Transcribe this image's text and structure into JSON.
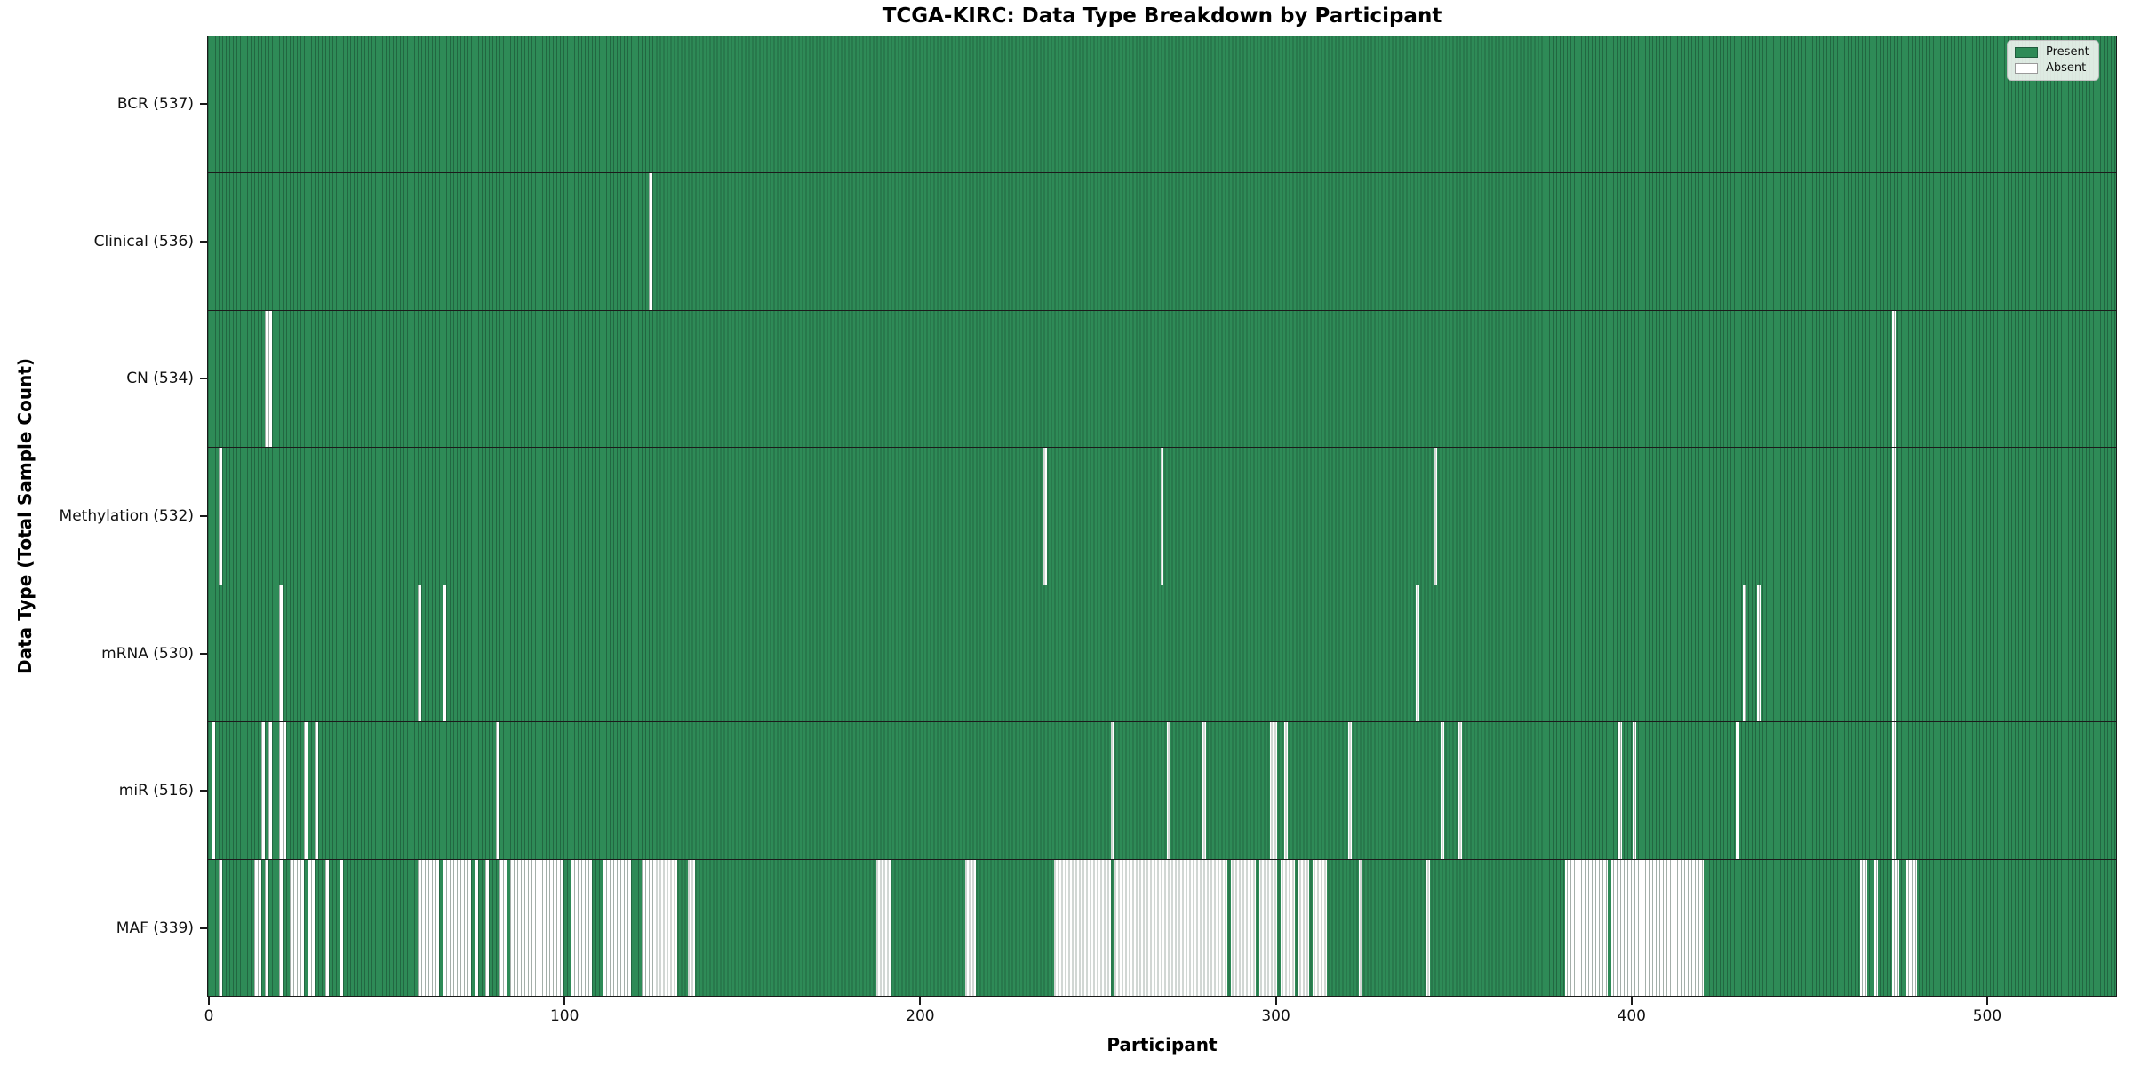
{
  "title": "TCGA-KIRC: Data Type Breakdown by Participant",
  "chart_data": {
    "type": "heatmap",
    "title": "TCGA-KIRC: Data Type Breakdown by Participant",
    "xlabel": "Participant",
    "ylabel": "Data Type (Total Sample Count)",
    "x_ticks": [
      0,
      100,
      200,
      300,
      400,
      500
    ],
    "x_range": [
      0,
      537
    ],
    "total_participants": 537,
    "grid": false,
    "legend_position": "upper right",
    "colors": {
      "present": "#2e8b57",
      "absent": "#ffffff"
    },
    "legend": [
      {
        "label": "Present",
        "key": "present"
      },
      {
        "label": "Absent",
        "key": "absent"
      }
    ],
    "rows": [
      {
        "name": "BCR",
        "label": "BCR (537)",
        "present_count": 537,
        "absent_ranges": []
      },
      {
        "name": "Clinical",
        "label": "Clinical (536)",
        "present_count": 536,
        "absent_ranges": [
          [
            124,
            124
          ]
        ]
      },
      {
        "name": "CN",
        "label": "CN (534)",
        "present_count": 534,
        "absent_ranges": [
          [
            16,
            17
          ],
          [
            474,
            474
          ]
        ]
      },
      {
        "name": "Methylation",
        "label": "Methylation (532)",
        "present_count": 532,
        "absent_ranges": [
          [
            3,
            3
          ],
          [
            235,
            235
          ],
          [
            268,
            268
          ],
          [
            345,
            345
          ],
          [
            474,
            474
          ]
        ]
      },
      {
        "name": "mRNA",
        "label": "mRNA (530)",
        "present_count": 530,
        "absent_ranges": [
          [
            20,
            20
          ],
          [
            59,
            59
          ],
          [
            66,
            66
          ],
          [
            340,
            340
          ],
          [
            432,
            432
          ],
          [
            436,
            436
          ],
          [
            474,
            474
          ]
        ]
      },
      {
        "name": "miR",
        "label": "miR (516)",
        "present_count": 516,
        "absent_ranges": [
          [
            1,
            1
          ],
          [
            15,
            15
          ],
          [
            17,
            17
          ],
          [
            20,
            21
          ],
          [
            27,
            27
          ],
          [
            30,
            30
          ],
          [
            81,
            81
          ],
          [
            254,
            254
          ],
          [
            270,
            270
          ],
          [
            280,
            280
          ],
          [
            299,
            300
          ],
          [
            303,
            303
          ],
          [
            321,
            321
          ],
          [
            347,
            347
          ],
          [
            352,
            352
          ],
          [
            397,
            397
          ],
          [
            401,
            401
          ],
          [
            430,
            430
          ],
          [
            474,
            474
          ]
        ]
      },
      {
        "name": "MAF",
        "label": "MAF (339)",
        "present_count": 339,
        "absent_ranges": [
          [
            3,
            3
          ],
          [
            13,
            14
          ],
          [
            16,
            16
          ],
          [
            20,
            20
          ],
          [
            23,
            26
          ],
          [
            28,
            29
          ],
          [
            33,
            33
          ],
          [
            37,
            37
          ],
          [
            59,
            64
          ],
          [
            66,
            73
          ],
          [
            75,
            75
          ],
          [
            78,
            78
          ],
          [
            82,
            83
          ],
          [
            85,
            99
          ],
          [
            102,
            107
          ],
          [
            111,
            118
          ],
          [
            122,
            131
          ],
          [
            135,
            136
          ],
          [
            188,
            191
          ],
          [
            213,
            215
          ],
          [
            238,
            253
          ],
          [
            255,
            286
          ],
          [
            288,
            294
          ],
          [
            296,
            300
          ],
          [
            302,
            305
          ],
          [
            307,
            309
          ],
          [
            311,
            314
          ],
          [
            324,
            324
          ],
          [
            343,
            343
          ],
          [
            382,
            393
          ],
          [
            395,
            420
          ],
          [
            465,
            466
          ],
          [
            469,
            469
          ],
          [
            474,
            475
          ],
          [
            478,
            480
          ]
        ]
      }
    ]
  }
}
